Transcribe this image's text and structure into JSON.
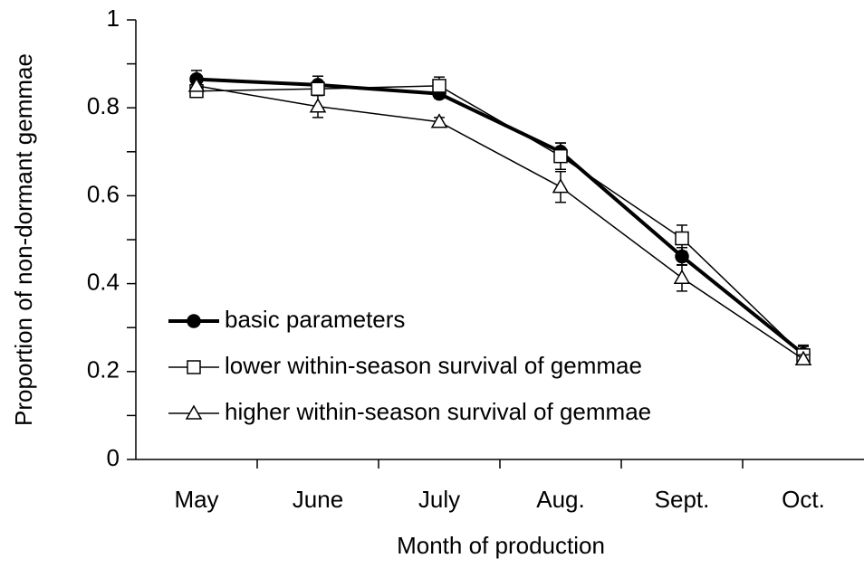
{
  "chart_data": {
    "type": "line",
    "x_label": "Month of production",
    "y_label": "Proportion of non-dormant gemmae",
    "categories": [
      "May",
      "June",
      "July",
      "Aug.",
      "Sept.",
      "Oct."
    ],
    "ylim": [
      0,
      1
    ],
    "yticks": [
      0,
      0.2,
      0.4,
      0.6,
      0.8,
      1
    ],
    "yticks_minor": [
      0.1,
      0.3,
      0.5,
      0.7,
      0.9
    ],
    "grid": false,
    "legend": "lower left",
    "series": [
      {
        "name": "basic parameters",
        "color": "#000000",
        "marker": "circle",
        "filled": true,
        "line_width": 4,
        "values": [
          0.865,
          0.852,
          0.832,
          0.7,
          0.462,
          0.24
        ],
        "errors": [
          0.02,
          0.02,
          0.01,
          0.02,
          0.02,
          0.02
        ]
      },
      {
        "name": "lower within-season survival of gemmae",
        "color": "#000000",
        "marker": "square",
        "filled": false,
        "line_width": 1.5,
        "values": [
          0.838,
          0.843,
          0.85,
          0.69,
          0.503,
          0.237
        ],
        "errors": [
          0.01,
          0.01,
          0.02,
          0.03,
          0.03,
          0.02
        ]
      },
      {
        "name": "higher within-season survival of gemmae",
        "color": "#000000",
        "marker": "triangle",
        "filled": false,
        "line_width": 1.5,
        "values": [
          0.85,
          0.803,
          0.768,
          0.62,
          0.413,
          0.228
        ],
        "errors": [
          0.01,
          0.025,
          0.01,
          0.035,
          0.03,
          0.01
        ]
      }
    ]
  }
}
